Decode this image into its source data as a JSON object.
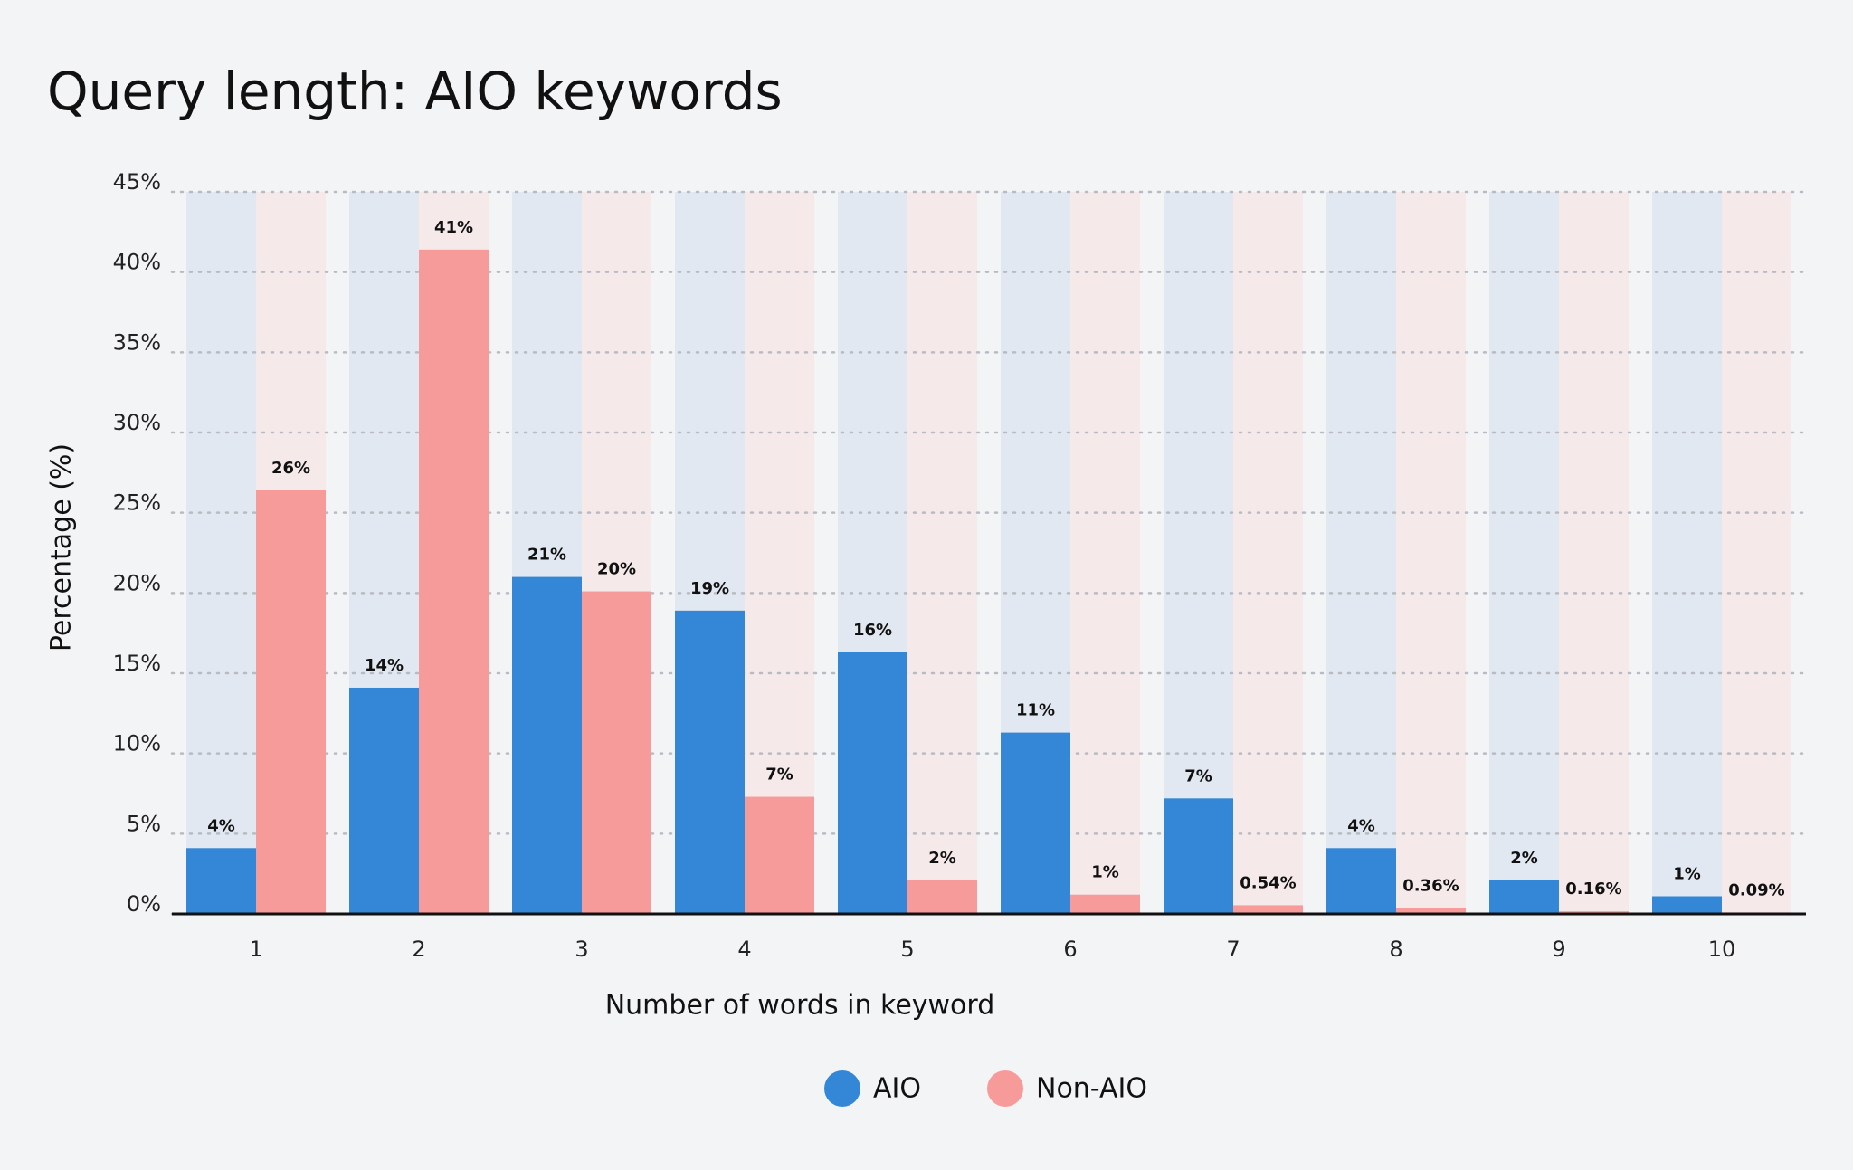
{
  "chart_data": {
    "type": "bar",
    "title": "Query length: AIO keywords",
    "x_label": "Number of words in keyword",
    "y_label": "Percentage (%)",
    "categories": [
      "1",
      "2",
      "3",
      "4",
      "5",
      "6",
      "7",
      "8",
      "9",
      "10"
    ],
    "series": [
      {
        "name": "AIO",
        "color": "#3387d6",
        "values": [
          4.1,
          14.1,
          21.0,
          18.9,
          16.3,
          11.3,
          7.2,
          4.1,
          2.1,
          1.1
        ],
        "value_labels": [
          "4%",
          "14%",
          "21%",
          "19%",
          "16%",
          "11%",
          "7%",
          "4%",
          "2%",
          "1%"
        ]
      },
      {
        "name": "Non-AIO",
        "color": "#f79a9a",
        "values": [
          26.4,
          41.4,
          20.1,
          7.3,
          2.1,
          1.2,
          0.54,
          0.36,
          0.16,
          0.09
        ],
        "value_labels": [
          "26%",
          "41%",
          "20%",
          "7%",
          "2%",
          "1%",
          "0.54%",
          "0.36%",
          "0.16%",
          "0.09%"
        ]
      }
    ],
    "ylim": [
      0,
      45
    ],
    "yticks": [
      {
        "value": 0,
        "label": "0%"
      },
      {
        "value": 5,
        "label": "5%"
      },
      {
        "value": 10,
        "label": "10%"
      },
      {
        "value": 15,
        "label": "15%"
      },
      {
        "value": 20,
        "label": "20%"
      },
      {
        "value": 25,
        "label": "25%"
      },
      {
        "value": 30,
        "label": "30%"
      },
      {
        "value": 35,
        "label": "35%"
      },
      {
        "value": 40,
        "label": "40%"
      },
      {
        "value": 45,
        "label": "45%"
      }
    ],
    "grid": true,
    "legend": "bottom"
  }
}
